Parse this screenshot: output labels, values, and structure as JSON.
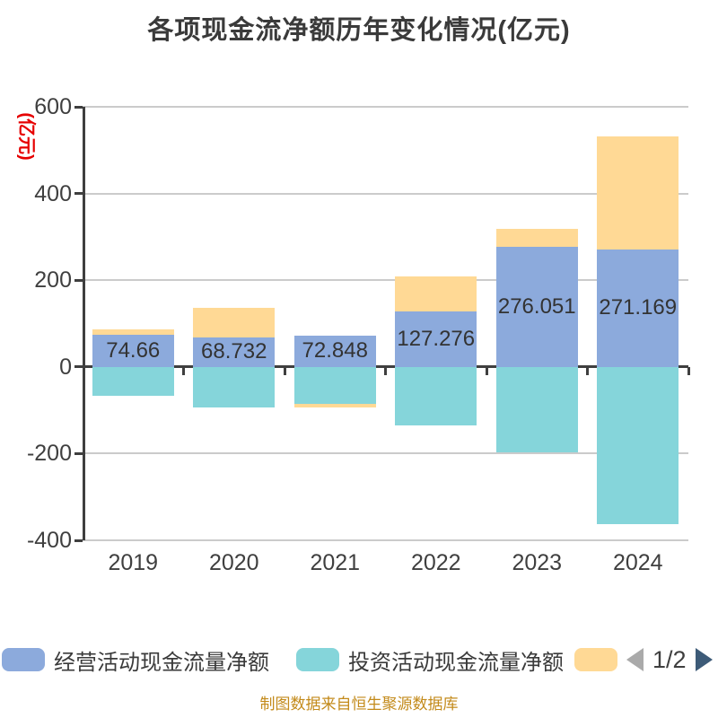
{
  "title": "各项现金流净额历年变化情况(亿元)",
  "y_axis_unit_label": "(亿元)",
  "footer": "制图数据来自恒生聚源数据库",
  "pagination": "1/2",
  "colors": {
    "operating_bar": "#8CAADC",
    "investing_bar": "#85D5DA",
    "financing_bar": "#FFD995",
    "grid_line": "#CBCBCB",
    "axis_line": "#3F3F3F",
    "title_text": "#3A3A3A",
    "unit_label_text": "#E60000",
    "bar_label_text": "#333333",
    "footer_text": "#C38A1A",
    "page_arrow_left": "#AAAAAA",
    "page_arrow_right": "#3D5B78"
  },
  "legend": [
    {
      "label": "经营活动现金流量净额",
      "color": "#8CAADC"
    },
    {
      "label": "投资活动现金流量净额",
      "color": "#85D5DA"
    },
    {
      "label": "",
      "color": "#FFD995"
    }
  ],
  "chart_data": {
    "type": "bar",
    "stacked": true,
    "title": "各项现金流净额历年变化情况(亿元)",
    "categories": [
      "2019",
      "2020",
      "2021",
      "2022",
      "2023",
      "2024"
    ],
    "series": [
      {
        "name": "经营活动现金流量净额",
        "color": "#8CAADC",
        "values": [
          74.66,
          68.732,
          72.848,
          127.276,
          276.051,
          271.169
        ],
        "data_labels": [
          "74.66",
          "68.732",
          "72.848",
          "127.276",
          "276.051",
          "271.169"
        ]
      },
      {
        "name": "投资活动现金流量净额",
        "color": "#85D5DA",
        "values": [
          -67,
          -93,
          -85,
          -135,
          -197,
          -362
        ],
        "estimated_from_pixels": true
      },
      {
        "name": "",
        "color": "#FFD995",
        "values": [
          12.5,
          68,
          -8.5,
          82,
          42,
          261
        ],
        "estimated_from_pixels": true
      }
    ],
    "ylim": [
      -400,
      600
    ],
    "yticks": [
      600,
      400,
      200,
      0,
      -200,
      -400
    ],
    "grid": true,
    "legend_position": "bottom"
  }
}
